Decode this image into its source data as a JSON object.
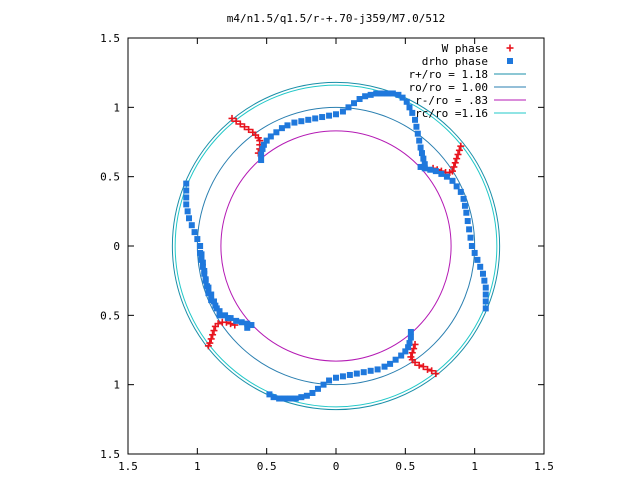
{
  "chart_data": {
    "type": "scatter",
    "title": "m4/n1.5/q1.5/r-+.70-j359/M7.0/512",
    "xlabel": "",
    "ylabel": "",
    "xlim": [
      -1.5,
      1.5
    ],
    "ylim": [
      -1.5,
      1.5
    ],
    "x_ticks": [
      -1.5,
      -1,
      -0.5,
      0,
      0.5,
      1,
      1.5
    ],
    "x_tick_labels": [
      "1.5",
      "1",
      "0.5",
      "0",
      "0.5",
      "1",
      "1.5"
    ],
    "y_ticks": [
      -1.5,
      -1,
      -0.5,
      0,
      0.5,
      1,
      1.5
    ],
    "y_tick_labels": [
      "1.5",
      "1",
      "0.5",
      "0",
      "0.5",
      "1",
      "1.5"
    ],
    "grid": false,
    "legend_position": "top-right",
    "circles": [
      {
        "name": "r+/ro = 1.18",
        "radius": 1.18,
        "color": "#1a8fa8"
      },
      {
        "name": "ro/ro = 1.00",
        "radius": 1.0,
        "color": "#2a7fb0"
      },
      {
        "name": "r-/ro = .83",
        "radius": 0.83,
        "color": "#b41ab4"
      },
      {
        "name": "rc/ro =1.16",
        "radius": 1.16,
        "color": "#22c8c8"
      }
    ],
    "series": [
      {
        "name": "W phase",
        "marker": "plus",
        "color": "#e8141e",
        "points": [
          [
            -0.75,
            0.92
          ],
          [
            -0.72,
            0.9
          ],
          [
            -0.69,
            0.88
          ],
          [
            -0.66,
            0.86
          ],
          [
            -0.63,
            0.84
          ],
          [
            -0.6,
            0.82
          ],
          [
            -0.58,
            0.8
          ],
          [
            -0.56,
            0.78
          ],
          [
            -0.55,
            0.76
          ],
          [
            -0.55,
            0.73
          ],
          [
            -0.55,
            0.7
          ],
          [
            -0.56,
            0.67
          ],
          [
            0.9,
            0.72
          ],
          [
            0.89,
            0.69
          ],
          [
            0.88,
            0.66
          ],
          [
            0.87,
            0.63
          ],
          [
            0.86,
            0.6
          ],
          [
            0.85,
            0.57
          ],
          [
            0.84,
            0.54
          ],
          [
            0.82,
            0.53
          ],
          [
            0.79,
            0.53
          ],
          [
            0.76,
            0.54
          ],
          [
            0.73,
            0.55
          ],
          [
            0.7,
            0.56
          ],
          [
            0.72,
            -0.92
          ],
          [
            0.69,
            -0.9
          ],
          [
            0.66,
            -0.89
          ],
          [
            0.63,
            -0.87
          ],
          [
            0.6,
            -0.86
          ],
          [
            0.57,
            -0.84
          ],
          [
            0.55,
            -0.82
          ],
          [
            0.54,
            -0.8
          ],
          [
            0.55,
            -0.77
          ],
          [
            0.56,
            -0.74
          ],
          [
            0.57,
            -0.71
          ],
          [
            -0.92,
            -0.72
          ],
          [
            -0.91,
            -0.7
          ],
          [
            -0.9,
            -0.67
          ],
          [
            -0.89,
            -0.64
          ],
          [
            -0.88,
            -0.61
          ],
          [
            -0.87,
            -0.58
          ],
          [
            -0.85,
            -0.56
          ],
          [
            -0.82,
            -0.55
          ],
          [
            -0.79,
            -0.55
          ],
          [
            -0.76,
            -0.56
          ],
          [
            -0.73,
            -0.57
          ]
        ]
      },
      {
        "name": "drho phase",
        "marker": "square",
        "color": "#1f78dc",
        "points": [
          [
            -0.54,
            0.62
          ],
          [
            -0.54,
            0.66
          ],
          [
            -0.53,
            0.7
          ],
          [
            -0.52,
            0.73
          ],
          [
            -0.5,
            0.76
          ],
          [
            -0.47,
            0.79
          ],
          [
            -0.43,
            0.82
          ],
          [
            -0.39,
            0.85
          ],
          [
            -0.35,
            0.87
          ],
          [
            -0.3,
            0.89
          ],
          [
            -0.25,
            0.9
          ],
          [
            -0.2,
            0.91
          ],
          [
            -0.15,
            0.92
          ],
          [
            -0.1,
            0.93
          ],
          [
            -0.05,
            0.94
          ],
          [
            0.0,
            0.95
          ],
          [
            0.05,
            0.97
          ],
          [
            0.09,
            1.0
          ],
          [
            0.13,
            1.03
          ],
          [
            0.17,
            1.06
          ],
          [
            0.21,
            1.08
          ],
          [
            0.25,
            1.09
          ],
          [
            0.29,
            1.1
          ],
          [
            0.33,
            1.1
          ],
          [
            0.37,
            1.1
          ],
          [
            0.41,
            1.1
          ],
          [
            0.45,
            1.09
          ],
          [
            0.48,
            1.07
          ],
          [
            0.51,
            1.04
          ],
          [
            0.53,
            1.0
          ],
          [
            0.55,
            0.96
          ],
          [
            0.57,
            0.91
          ],
          [
            0.58,
            0.86
          ],
          [
            0.59,
            0.81
          ],
          [
            0.6,
            0.76
          ],
          [
            0.61,
            0.71
          ],
          [
            0.62,
            0.67
          ],
          [
            0.63,
            0.63
          ],
          [
            0.64,
            0.59
          ],
          [
            0.61,
            0.57
          ],
          [
            0.64,
            0.56
          ],
          [
            0.68,
            0.55
          ],
          [
            0.72,
            0.54
          ],
          [
            0.76,
            0.52
          ],
          [
            0.8,
            0.5
          ],
          [
            0.84,
            0.47
          ],
          [
            0.87,
            0.43
          ],
          [
            0.9,
            0.39
          ],
          [
            0.92,
            0.34
          ],
          [
            0.93,
            0.29
          ],
          [
            0.94,
            0.24
          ],
          [
            0.95,
            0.18
          ],
          [
            0.96,
            0.12
          ],
          [
            0.97,
            0.06
          ],
          [
            0.98,
            0.0
          ],
          [
            1.0,
            -0.05
          ],
          [
            1.02,
            -0.1
          ],
          [
            1.04,
            -0.15
          ],
          [
            1.06,
            -0.2
          ],
          [
            1.07,
            -0.25
          ],
          [
            1.08,
            -0.3
          ],
          [
            1.08,
            -0.35
          ],
          [
            1.08,
            -0.4
          ],
          [
            1.08,
            -0.45
          ],
          [
            0.54,
            -0.62
          ],
          [
            0.54,
            -0.66
          ],
          [
            0.53,
            -0.7
          ],
          [
            0.52,
            -0.73
          ],
          [
            0.5,
            -0.76
          ],
          [
            0.47,
            -0.79
          ],
          [
            0.43,
            -0.82
          ],
          [
            0.39,
            -0.85
          ],
          [
            0.35,
            -0.87
          ],
          [
            0.3,
            -0.89
          ],
          [
            0.25,
            -0.9
          ],
          [
            0.2,
            -0.91
          ],
          [
            0.15,
            -0.92
          ],
          [
            0.1,
            -0.93
          ],
          [
            0.05,
            -0.94
          ],
          [
            0.0,
            -0.95
          ],
          [
            -0.05,
            -0.97
          ],
          [
            -0.09,
            -1.0
          ],
          [
            -0.13,
            -1.03
          ],
          [
            -0.17,
            -1.06
          ],
          [
            -0.21,
            -1.08
          ],
          [
            -0.25,
            -1.09
          ],
          [
            -0.29,
            -1.1
          ],
          [
            -0.33,
            -1.1
          ],
          [
            -0.37,
            -1.1
          ],
          [
            -0.41,
            -1.1
          ],
          [
            -0.45,
            -1.09
          ],
          [
            -0.48,
            -1.07
          ],
          [
            -0.64,
            -0.59
          ],
          [
            -0.61,
            -0.57
          ],
          [
            -0.64,
            -0.56
          ],
          [
            -0.68,
            -0.55
          ],
          [
            -0.72,
            -0.54
          ],
          [
            -0.76,
            -0.52
          ],
          [
            -0.8,
            -0.5
          ],
          [
            -0.84,
            -0.47
          ],
          [
            -0.87,
            -0.43
          ],
          [
            -0.9,
            -0.39
          ],
          [
            -0.92,
            -0.34
          ],
          [
            -0.93,
            -0.29
          ],
          [
            -0.94,
            -0.24
          ],
          [
            -0.95,
            -0.18
          ],
          [
            -0.96,
            -0.12
          ],
          [
            -0.97,
            -0.06
          ],
          [
            -0.98,
            0.0
          ],
          [
            -1.0,
            0.05
          ],
          [
            -1.02,
            0.1
          ],
          [
            -1.04,
            0.15
          ],
          [
            -1.06,
            0.2
          ],
          [
            -1.07,
            0.25
          ],
          [
            -1.08,
            0.3
          ],
          [
            -1.08,
            0.35
          ],
          [
            -1.08,
            0.4
          ],
          [
            -1.08,
            0.45
          ],
          [
            -0.98,
            -0.05
          ],
          [
            -0.97,
            -0.1
          ],
          [
            -0.96,
            -0.15
          ],
          [
            -0.95,
            -0.2
          ],
          [
            -0.94,
            -0.25
          ],
          [
            -0.92,
            -0.3
          ],
          [
            -0.9,
            -0.35
          ],
          [
            -0.88,
            -0.4
          ],
          [
            -0.86,
            -0.45
          ],
          [
            -0.84,
            -0.5
          ],
          [
            -0.78,
            -0.52
          ]
        ]
      }
    ]
  }
}
